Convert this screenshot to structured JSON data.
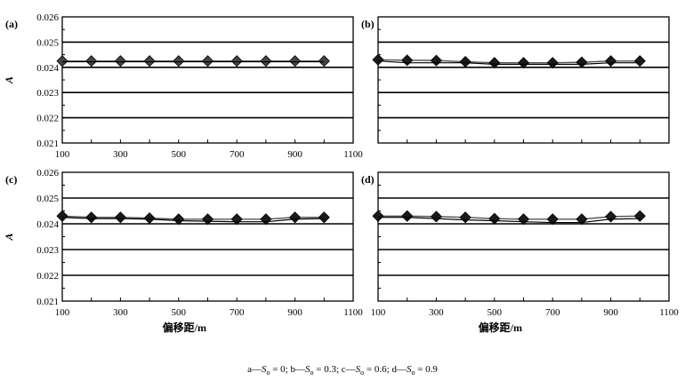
{
  "chart_data": [
    {
      "type": "line",
      "panel_label": "(a)",
      "ylabel": "A",
      "xlabel": "",
      "xticks": [
        "100",
        "300",
        "500",
        "700",
        "900",
        "1100"
      ],
      "yticks": [
        "0.026",
        "0.025",
        "0.024",
        "0.023",
        "0.022",
        "0.021"
      ],
      "xlim": [
        100,
        1100
      ],
      "ylim": [
        0.021,
        0.026
      ],
      "grid": "horizontal",
      "series": [
        {
          "x": [
            100,
            200,
            300,
            400,
            500,
            600,
            700,
            800,
            900,
            1000
          ],
          "y": [
            0.02425,
            0.02425,
            0.02425,
            0.02425,
            0.02425,
            0.02425,
            0.02425,
            0.02425,
            0.02425,
            0.02425
          ]
        },
        {
          "x": [
            100,
            200,
            300,
            400,
            500,
            600,
            700,
            800,
            900,
            1000
          ],
          "y": [
            0.02422,
            0.02422,
            0.02422,
            0.02422,
            0.02422,
            0.02422,
            0.02422,
            0.02422,
            0.02422,
            0.02422
          ]
        }
      ]
    },
    {
      "type": "line",
      "panel_label": "(b)",
      "ylabel": "",
      "xlabel": "",
      "xticks": [],
      "yticks": [],
      "xlim": [
        100,
        1100
      ],
      "ylim": [
        0.021,
        0.026
      ],
      "grid": "horizontal",
      "series": [
        {
          "x": [
            100,
            200,
            300,
            400,
            500,
            600,
            700,
            800,
            900,
            1000
          ],
          "y": [
            0.0243,
            0.02428,
            0.02427,
            0.02422,
            0.02418,
            0.02418,
            0.02418,
            0.0242,
            0.02425,
            0.02425
          ]
        },
        {
          "x": [
            100,
            200,
            300,
            400,
            500,
            600,
            700,
            800,
            900,
            1000
          ],
          "y": [
            0.02425,
            0.02418,
            0.02418,
            0.02418,
            0.02412,
            0.02412,
            0.02412,
            0.02412,
            0.02418,
            0.02418
          ]
        }
      ]
    },
    {
      "type": "line",
      "panel_label": "(c)",
      "ylabel": "A",
      "xlabel": "偏移距/m",
      "xticks": [
        "100",
        "300",
        "500",
        "700",
        "900",
        "1100"
      ],
      "yticks": [
        "0.026",
        "0.025",
        "0.024",
        "0.023",
        "0.022",
        "0.021"
      ],
      "xlim": [
        100,
        1100
      ],
      "ylim": [
        0.021,
        0.026
      ],
      "grid": "horizontal",
      "series": [
        {
          "x": [
            100,
            200,
            300,
            400,
            500,
            600,
            700,
            800,
            900,
            1000
          ],
          "y": [
            0.0243,
            0.02425,
            0.02425,
            0.02422,
            0.02418,
            0.02418,
            0.02418,
            0.02418,
            0.02425,
            0.02425
          ]
        },
        {
          "x": [
            100,
            200,
            300,
            400,
            500,
            600,
            700,
            800,
            900,
            1000
          ],
          "y": [
            0.02425,
            0.0242,
            0.0242,
            0.02418,
            0.02412,
            0.0241,
            0.02408,
            0.02408,
            0.02418,
            0.0242
          ]
        }
      ]
    },
    {
      "type": "line",
      "panel_label": "(d)",
      "ylabel": "",
      "xlabel": "偏移距/m",
      "xticks": [
        "100",
        "300",
        "500",
        "700",
        "900",
        "1100"
      ],
      "yticks": [],
      "xlim": [
        100,
        1100
      ],
      "ylim": [
        0.021,
        0.026
      ],
      "grid": "horizontal",
      "series": [
        {
          "x": [
            100,
            200,
            300,
            400,
            500,
            600,
            700,
            800,
            900,
            1000
          ],
          "y": [
            0.0243,
            0.0243,
            0.02428,
            0.02425,
            0.0242,
            0.02418,
            0.02418,
            0.02418,
            0.02428,
            0.0243
          ]
        },
        {
          "x": [
            100,
            200,
            300,
            400,
            500,
            600,
            700,
            800,
            900,
            1000
          ],
          "y": [
            0.02425,
            0.02425,
            0.0242,
            0.02415,
            0.02412,
            0.02408,
            0.02405,
            0.02405,
            0.02418,
            0.0242
          ]
        }
      ]
    }
  ],
  "caption": {
    "items": [
      {
        "letter": "a",
        "sep": "—",
        "var": "S",
        "sub": "o",
        "eq": " = 0",
        "delim": "; "
      },
      {
        "letter": "b",
        "sep": "—",
        "var": "S",
        "sub": "o",
        "eq": " = 0.3",
        "delim": "; "
      },
      {
        "letter": "c",
        "sep": "—",
        "var": "S",
        "sub": "o",
        "eq": " = 0.6",
        "delim": "; "
      },
      {
        "letter": "d",
        "sep": "—",
        "var": "S",
        "sub": "o",
        "eq": " = 0.9",
        "delim": ""
      }
    ]
  }
}
